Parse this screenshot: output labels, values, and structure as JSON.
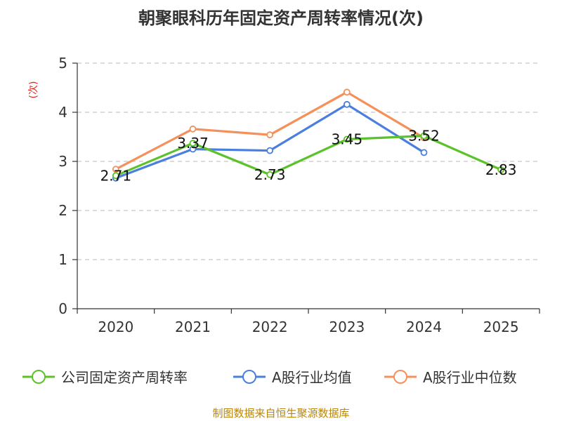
{
  "chart_data": {
    "type": "line",
    "title": "朝聚眼科历年固定资产周转率情况(次)",
    "ylabel": "(次)",
    "xlabel": "",
    "categories": [
      "2020",
      "2021",
      "2022",
      "2023",
      "2024",
      "2025"
    ],
    "ylim": [
      0,
      5
    ],
    "yticks": [
      0,
      1,
      2,
      3,
      4,
      5
    ],
    "grid": true,
    "legend_position": "bottom",
    "series": [
      {
        "name": "公司固定资产周转率",
        "color": "#5bc22a",
        "values": [
          2.71,
          3.37,
          2.73,
          3.45,
          3.52,
          2.83
        ],
        "labels": [
          "2.71",
          "3.37",
          "2.73",
          "3.45",
          "3.52",
          "2.83"
        ]
      },
      {
        "name": "A股行业均值",
        "color": "#4a7fde",
        "values": [
          2.66,
          3.25,
          3.22,
          4.16,
          3.18,
          null
        ]
      },
      {
        "name": "A股行业中位数",
        "color": "#f5905a",
        "values": [
          2.84,
          3.66,
          3.54,
          4.41,
          3.48,
          null
        ]
      }
    ],
    "source": "制图数据来自恒生聚源数据库"
  }
}
